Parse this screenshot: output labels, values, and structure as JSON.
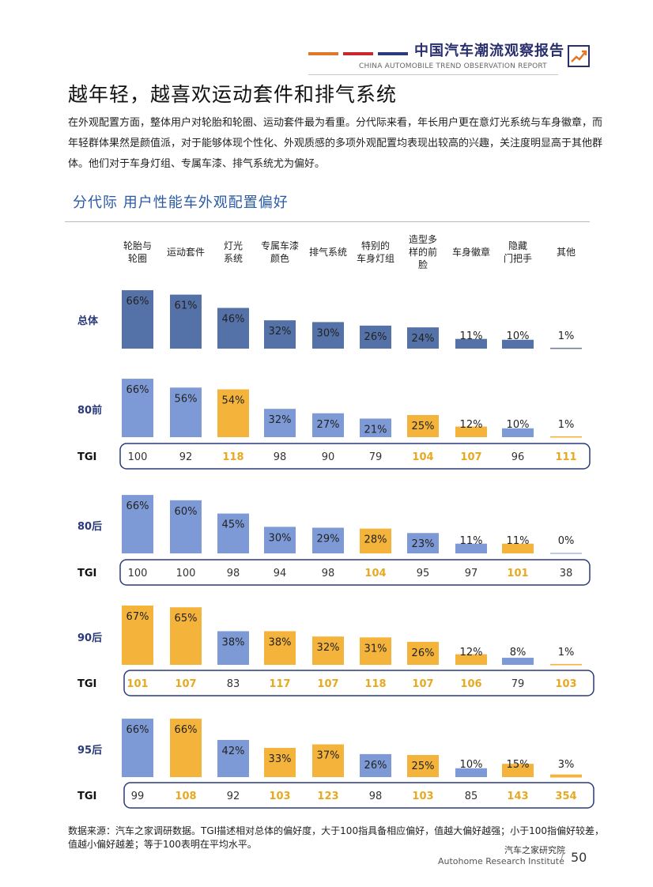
{
  "header": {
    "title": "中国汽车潮流观察报告",
    "subtitle": "CHINA AUTOMOBILE TREND OBSERVATION REPORT",
    "accent_colors": [
      "#e0782a",
      "#c8272f",
      "#2a3a7a"
    ]
  },
  "page_title": "越年轻，越喜欢运动套件和排气系统",
  "intro": "在外观配置方面，整体用户对轮胎和轮圈、运动套件最为看重。分代际来看，年长用户更在意灯光系统与车身徽章，而年轻群体果然是颜值派，对于能够体现个性化、外观质感的多项外观配置均表现出较高的兴趣，关注度明显高于其他群体。他们对于车身灯组、专属车漆、排气系统尤为偏好。",
  "section_title": "分代际  用户性能车外观配置偏好",
  "chart_data": {
    "type": "bar",
    "categories": [
      "轮胎与\n轮圈",
      "运动套件",
      "灯光\n系统",
      "专属车漆\n颜色",
      "排气系统",
      "特别的\n车身灯组",
      "造型多\n样的前\n脸",
      "车身徽章",
      "隐藏\n门把手",
      "其他"
    ],
    "tgi_label": "TGI",
    "colors": {
      "overall": "#5572a8",
      "normal": "#7d9ad6",
      "high": "#f4b33a",
      "high_text": "#e8a820"
    },
    "series": [
      {
        "name": "总体",
        "values": [
          66,
          61,
          46,
          32,
          30,
          26,
          24,
          11,
          10,
          1
        ],
        "labels": [
          "66%",
          "61%",
          "46%",
          "32%",
          "30%",
          "26%",
          "24%",
          "11%",
          "10%",
          "1%"
        ]
      },
      {
        "name": "80前",
        "values": [
          66,
          56,
          54,
          32,
          27,
          21,
          25,
          12,
          10,
          1
        ],
        "labels": [
          "66%",
          "56%",
          "54%",
          "32%",
          "27%",
          "21%",
          "25%",
          "12%",
          "10%",
          "1%"
        ],
        "tgi": [
          100,
          92,
          118,
          98,
          90,
          79,
          104,
          107,
          96,
          111
        ]
      },
      {
        "name": "80后",
        "values": [
          66,
          60,
          45,
          30,
          29,
          28,
          23,
          11,
          11,
          0
        ],
        "labels": [
          "66%",
          "60%",
          "45%",
          "30%",
          "29%",
          "28%",
          "23%",
          "11%",
          "11%",
          "0%"
        ],
        "tgi": [
          100,
          100,
          98,
          94,
          98,
          104,
          95,
          97,
          101,
          38
        ]
      },
      {
        "name": "90后",
        "values": [
          67,
          65,
          38,
          38,
          32,
          31,
          26,
          12,
          8,
          1
        ],
        "labels": [
          "67%",
          "65%",
          "38%",
          "38%",
          "32%",
          "31%",
          "26%",
          "12%",
          "8%",
          "1%"
        ],
        "tgi": [
          101,
          107,
          83,
          117,
          107,
          118,
          107,
          106,
          79,
          103
        ]
      },
      {
        "name": "95后",
        "values": [
          66,
          66,
          42,
          33,
          37,
          26,
          25,
          10,
          15,
          3
        ],
        "labels": [
          "66%",
          "66%",
          "42%",
          "33%",
          "37%",
          "26%",
          "25%",
          "10%",
          "15%",
          "3%"
        ],
        "tgi": [
          99,
          108,
          92,
          103,
          123,
          98,
          103,
          85,
          143,
          354
        ]
      }
    ]
  },
  "source": "数据来源：汽车之家调研数据。TGI描述相对总体的偏好度，大于100指具备相应偏好，值越大偏好越强；小于100指偏好较差，值越小偏好越差；等于100表明在平均水平。",
  "footer": {
    "org_cn": "汽车之家研究院",
    "org_en": "Autohome Research Institute",
    "page": "50"
  }
}
